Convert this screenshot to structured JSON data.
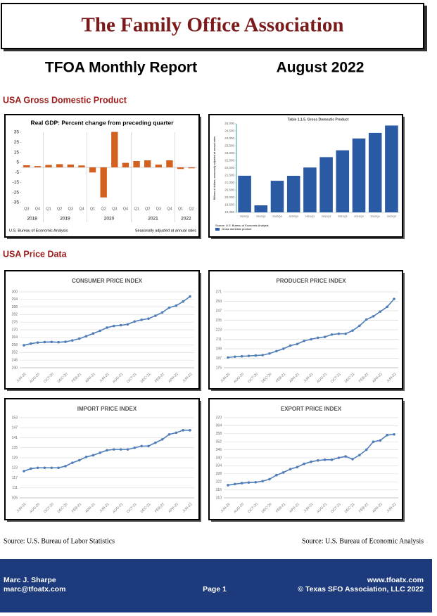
{
  "header": {
    "title": "The Family Office Association",
    "report_title": "TFOA Monthly Report",
    "date": "August 2022"
  },
  "sections": [
    "USA Gross Domestic Product",
    "USA Price Data"
  ],
  "chart_data": [
    {
      "type": "bar",
      "title": "Real GDP: Percent change from preceding quarter",
      "categories": [
        "Q3",
        "Q4",
        "Q1",
        "Q2",
        "Q3",
        "Q4",
        "Q1",
        "Q2",
        "Q3",
        "Q4",
        "Q1",
        "Q2",
        "Q3",
        "Q4",
        "Q1",
        "Q2"
      ],
      "years": [
        "2018",
        "2019",
        "2020",
        "2021",
        "2022"
      ],
      "values": [
        2.1,
        1.3,
        2.4,
        3.2,
        2.8,
        1.9,
        -5.1,
        -29.9,
        35.3,
        4.5,
        6.3,
        7.0,
        2.7,
        7.0,
        -1.6,
        -0.9
      ],
      "color": "#d2601f",
      "ylim": [
        -35,
        35
      ],
      "yticks": [
        35,
        25,
        15,
        5,
        -5,
        -15,
        -25,
        -35
      ],
      "source": "U.S. Bureau of Economic Analysis",
      "note": "Seasonally adjusted at annual rates"
    },
    {
      "type": "bar",
      "title": "Table 1.1.5. Gross Domestic Product",
      "y_label": "Billions of dollars; seasonally adjusted at annual rates",
      "categories": [
        "2020Q1",
        "2020Q2",
        "2020Q3",
        "2020Q4",
        "2021Q1",
        "2021Q2",
        "2021Q3",
        "2021Q4",
        "2022Q1",
        "2022Q2"
      ],
      "values": [
        21481,
        19477,
        21139,
        21477,
        22038,
        22741,
        23202,
        24002,
        24386,
        24882
      ],
      "color": "#2a5aa3",
      "ylim": [
        19000,
        25000
      ],
      "yticks": [
        {
          "value": 19000,
          "label": "19,000"
        },
        {
          "value": 19500,
          "label": "19,500"
        },
        {
          "value": 20000,
          "label": "20,000"
        },
        {
          "value": 20500,
          "label": "20,500"
        },
        {
          "value": 21000,
          "label": "21,000"
        },
        {
          "value": 21500,
          "label": "21,500"
        },
        {
          "value": 22000,
          "label": "22,000"
        },
        {
          "value": 22500,
          "label": "22,500"
        },
        {
          "value": 23000,
          "label": "23,000"
        },
        {
          "value": 23500,
          "label": "23,500"
        },
        {
          "value": 24000,
          "label": "24,000"
        },
        {
          "value": 24500,
          "label": "24,500"
        },
        {
          "value": 25000,
          "label": "25,000"
        }
      ],
      "legend": "Gross domestic product",
      "source": "Source: U.S. Bureau of Economic Analysis"
    },
    {
      "type": "line",
      "title": "CONSUMER PRICE INDEX",
      "categories": [
        "JUN-20",
        null,
        "AUG-20",
        null,
        "OCT-20",
        null,
        "DEC-20",
        null,
        "FEB-21",
        null,
        "APR-21",
        null,
        "JUN-21",
        null,
        "AUG-21",
        null,
        "OCT-21",
        null,
        "DEC-21",
        null,
        "FEB-22",
        null,
        "APR-22",
        null,
        "JUN-22"
      ],
      "values": [
        257.8,
        259.1,
        259.9,
        260.3,
        260.4,
        260.2,
        260.5,
        261.6,
        263.0,
        264.9,
        267.1,
        269.2,
        271.7,
        273.0,
        273.6,
        274.3,
        276.6,
        277.9,
        278.8,
        281.1,
        283.7,
        287.5,
        289.1,
        292.3,
        296.3
      ],
      "color": "#4f7db8",
      "ylim": [
        240,
        300
      ],
      "yticks": [
        240,
        246,
        252,
        258,
        264,
        270,
        276,
        282,
        288,
        294,
        300
      ],
      "grid": true
    },
    {
      "type": "line",
      "title": "PRODUCER PRICE INDEX",
      "categories": [
        "JUN-20",
        null,
        "AUG-20",
        null,
        "OCT-20",
        null,
        "DEC-20",
        null,
        "FEB-21",
        null,
        "APR-21",
        null,
        "JUN-21",
        null,
        "AUG-21",
        null,
        "OCT-21",
        null,
        "DEC-21",
        null,
        "FEB-22",
        null,
        "APR-22",
        null,
        "JUN-22"
      ],
      "values": [
        188,
        189,
        189.5,
        190,
        190.5,
        191,
        193,
        196,
        199,
        203,
        205,
        209,
        211,
        213,
        214,
        217,
        218,
        218,
        222,
        228,
        236,
        240,
        246,
        252,
        262
      ],
      "color": "#4f7db8",
      "ylim": [
        175,
        271
      ],
      "yticks": [
        175,
        187,
        199,
        211,
        223,
        235,
        247,
        259,
        271
      ],
      "grid": true
    },
    {
      "type": "line",
      "title": "IMPORT PRICE INDEX",
      "categories": [
        "JUN-20",
        null,
        "AUG-20",
        null,
        "OCT-20",
        null,
        "DEC-20",
        null,
        "FEB-21",
        null,
        "APR-21",
        null,
        "JUN-21",
        null,
        "AUG-21",
        null,
        "OCT-21",
        null,
        "DEC-21",
        null,
        "FEB-22",
        null,
        "APR-22",
        null,
        "JUN-22"
      ],
      "values": [
        121,
        122.5,
        123,
        123,
        123,
        123,
        124,
        126,
        127.5,
        129.5,
        130.5,
        132,
        133.5,
        134,
        134,
        134,
        135,
        136,
        136,
        138,
        140,
        143,
        144,
        145.5,
        145.5
      ],
      "color": "#4f7db8",
      "ylim": [
        105,
        153
      ],
      "yticks": [
        105,
        111,
        117,
        123,
        129,
        135,
        141,
        147,
        153
      ],
      "grid": true
    },
    {
      "type": "line",
      "title": "EXPORT PRICE INDEX",
      "categories": [
        "JUN-20",
        null,
        "AUG-20",
        null,
        "OCT-20",
        null,
        "DEC-20",
        null,
        "FEB-21",
        null,
        "APR-21",
        null,
        "JUN-21",
        null,
        "AUG-21",
        null,
        "OCT-21",
        null,
        "DEC-21",
        null,
        "FEB-22",
        null,
        "APR-22",
        null,
        "JUN-22"
      ],
      "values": [
        319.5,
        320.3,
        321,
        321.5,
        321.7,
        322.5,
        324,
        327,
        329,
        331.5,
        333,
        335.5,
        337,
        338,
        338.5,
        338.5,
        340,
        341,
        339,
        342,
        346,
        352,
        353,
        357,
        357.5
      ],
      "color": "#4f7db8",
      "ylim": [
        310,
        370
      ],
      "yticks": [
        310,
        316,
        322,
        328,
        334,
        340,
        346,
        352,
        358,
        364,
        370
      ],
      "grid": true
    }
  ],
  "sources": {
    "left": "Source: U.S. Bureau of Labor Statistics",
    "right": "Source: U.S. Bureau of Economic Analysis"
  },
  "footer": {
    "name": "Marc J. Sharpe",
    "email": "marc@tfoatx.com",
    "page": "Page 1",
    "website": "www.tfoatx.com",
    "copyright": "© Texas SFO Association, LLC 2022"
  }
}
